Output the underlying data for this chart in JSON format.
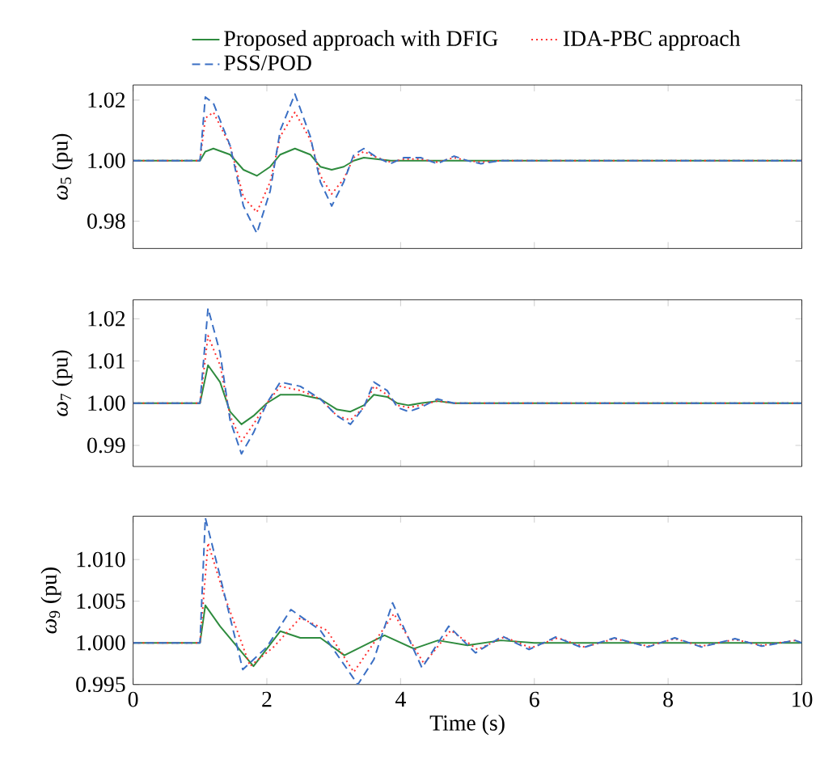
{
  "chart_data": [
    {
      "type": "line",
      "ylabel": "*ω*$_{5}$ (pu)",
      "legend": "top",
      "tick_labels": "y",
      "x": [
        0,
        1,
        1.08,
        1.2,
        1.45,
        1.65,
        1.85,
        2.05,
        2.2,
        2.42,
        2.65,
        2.8,
        2.97,
        3.15,
        3.3,
        3.45,
        3.65,
        3.85,
        4.05,
        4.3,
        4.55,
        4.8,
        5.0,
        5.2,
        5.5,
        6,
        7,
        8,
        9,
        10
      ],
      "xlim": [
        0,
        10
      ],
      "xticks": [
        0,
        2,
        4,
        6,
        8,
        10
      ],
      "ylim": [
        0.971,
        1.025
      ],
      "yticks": [
        {
          "value": 0.98,
          "label": "0.98"
        },
        {
          "value": 1.0,
          "label": "1.00"
        },
        {
          "value": 1.02,
          "label": "1.02"
        }
      ],
      "series": [
        {
          "name": "Proposed approach with DFIG",
          "color": "#2e8b3e",
          "line_style": "solid",
          "values": [
            1.0,
            1.0,
            1.003,
            1.004,
            1.002,
            0.997,
            0.995,
            0.998,
            1.002,
            1.004,
            1.002,
            0.998,
            0.997,
            0.998,
            1.0,
            1.001,
            1.0005,
            1.0,
            1.0,
            1.0,
            1.0,
            1.0,
            1.0,
            1.0,
            1.0,
            1.0,
            1.0,
            1.0,
            1.0,
            1.0
          ]
        },
        {
          "name": "IDA-PBC approach",
          "color": "#ff3030",
          "line_style": "dotted",
          "values": [
            1.0,
            1.0,
            1.014,
            1.016,
            1.005,
            0.988,
            0.983,
            0.993,
            1.008,
            1.016,
            1.007,
            0.995,
            0.989,
            0.994,
            1.001,
            1.003,
            1.001,
            0.9995,
            1.0005,
            1.0005,
            0.9995,
            1.001,
            1.0,
            0.9995,
            1.0,
            1.0,
            1.0,
            1.0,
            1.0,
            1.0
          ]
        },
        {
          "name": "PSS/POD",
          "color": "#3a6fc4",
          "line_style": "dashed",
          "values": [
            1.0,
            1.0,
            1.021,
            1.019,
            1.005,
            0.985,
            0.976,
            0.99,
            1.01,
            1.022,
            1.008,
            0.993,
            0.985,
            0.993,
            1.002,
            1.004,
            1.001,
            0.999,
            1.001,
            1.001,
            0.999,
            1.0015,
            1.0,
            0.999,
            1.0,
            1.0,
            1.0,
            1.0,
            1.0,
            1.0
          ]
        }
      ]
    },
    {
      "type": "line",
      "ylabel": "*ω*$_{7}$ (pu)",
      "tick_labels": "y",
      "x": [
        0,
        1,
        1.12,
        1.3,
        1.45,
        1.62,
        1.8,
        2.0,
        2.2,
        2.5,
        2.8,
        3.05,
        3.25,
        3.45,
        3.6,
        3.8,
        3.95,
        4.12,
        4.3,
        4.55,
        4.8,
        5.2,
        6,
        7,
        8,
        9,
        10
      ],
      "xlim": [
        0,
        10
      ],
      "xticks": [
        0,
        2,
        4,
        6,
        8,
        10
      ],
      "ylim": [
        0.985,
        1.0245
      ],
      "yticks": [
        {
          "value": 0.99,
          "label": "0.99"
        },
        {
          "value": 1.0,
          "label": "1.00"
        },
        {
          "value": 1.01,
          "label": "1.01"
        },
        {
          "value": 1.02,
          "label": "1.02"
        }
      ],
      "series": [
        {
          "color": "#2e8b3e",
          "line_style": "solid",
          "values": [
            1,
            1,
            1.009,
            1.005,
            0.998,
            0.995,
            0.997,
            1.0,
            1.002,
            1.002,
            1.001,
            0.9985,
            0.998,
            0.9995,
            1.002,
            1.0015,
            1.0,
            0.9995,
            1.0,
            1.0005,
            1.0,
            1.0,
            1,
            1,
            1,
            1,
            1
          ]
        },
        {
          "color": "#ff3030",
          "line_style": "dotted",
          "values": [
            1,
            1,
            1.016,
            1.009,
            0.997,
            0.991,
            0.995,
            1.0,
            1.004,
            1.003,
            1.001,
            0.997,
            0.996,
            0.999,
            1.004,
            1.002,
            0.9995,
            0.999,
            0.9995,
            1.0005,
            1.0,
            1.0,
            1,
            1,
            1,
            1,
            1
          ]
        },
        {
          "color": "#3a6fc4",
          "line_style": "dashed",
          "values": [
            1,
            1,
            1.0225,
            1.012,
            0.996,
            0.988,
            0.993,
            1.0,
            1.005,
            1.004,
            1.001,
            0.997,
            0.995,
            0.999,
            1.005,
            1.003,
            0.999,
            0.998,
            0.999,
            1.001,
            1.0,
            1.0,
            1,
            1,
            1,
            1,
            1
          ]
        }
      ]
    },
    {
      "type": "line",
      "ylabel": "*ω*$_{9}$ (pu)",
      "xlabel": "Time (s)",
      "xlim": [
        0,
        10
      ],
      "xticks": [
        0,
        2,
        4,
        6,
        8,
        10
      ],
      "ylim": [
        0.995,
        1.0152
      ],
      "yticks": [
        {
          "value": 0.995,
          "label": "0.995"
        },
        {
          "value": 1.0,
          "label": "1.000"
        },
        {
          "value": 1.005,
          "label": "1.005"
        },
        {
          "value": 1.01,
          "label": "1.010"
        }
      ],
      "series": [
        {
          "color": "#2e8b3e",
          "line_style": "solid",
          "x": [
            0,
            1,
            1.08,
            1.3,
            1.8,
            2.2,
            2.5,
            2.8,
            3.16,
            3.76,
            4.2,
            4.56,
            5.0,
            5.5,
            6,
            10
          ],
          "values": [
            1,
            1,
            1.0045,
            1.002,
            0.9972,
            1.0014,
            1.0006,
            1.0006,
            0.9985,
            1.0009,
            0.9993,
            1.0003,
            0.9997,
            1.0003,
            1.0,
            1.0
          ]
        },
        {
          "color": "#ff3030",
          "line_style": "dotted",
          "x": [
            0,
            1,
            1.12,
            1.35,
            1.75,
            2.1,
            2.5,
            2.9,
            3.3,
            3.9,
            4.35,
            4.75,
            5.15,
            5.55,
            5.95,
            6.35,
            6.75,
            7.2,
            7.7,
            8.1,
            8.5,
            9.0,
            9.4,
            9.9,
            10
          ],
          "values": [
            1,
            1,
            1.012,
            1.006,
            0.9972,
            0.9995,
            1.003,
            1.0015,
            0.9965,
            1.0035,
            0.9975,
            1.0015,
            0.9992,
            1.0007,
            0.9994,
            1.0006,
            0.9995,
            1.0005,
            0.9996,
            1.0005,
            0.9996,
            1.0004,
            0.9997,
            1.0003,
            1.0
          ]
        },
        {
          "color": "#3a6fc4",
          "line_style": "dashed",
          "x": [
            0,
            1,
            1.08,
            1.3,
            1.64,
            2.0,
            2.36,
            2.8,
            3.36,
            3.6,
            3.88,
            4.32,
            4.72,
            5.12,
            5.52,
            5.92,
            6.32,
            6.72,
            7.2,
            7.7,
            8.1,
            8.5,
            9.0,
            9.4,
            9.9,
            10
          ],
          "values": [
            1,
            1,
            1.015,
            1.008,
            0.9968,
            0.9995,
            1.004,
            1.0015,
            0.995,
            0.998,
            1.0048,
            0.997,
            1.002,
            0.9988,
            1.0008,
            0.9992,
            1.0007,
            0.9994,
            1.0006,
            0.9995,
            1.0006,
            0.9995,
            1.0005,
            0.9996,
            1.0003,
            1.0
          ]
        }
      ]
    }
  ]
}
